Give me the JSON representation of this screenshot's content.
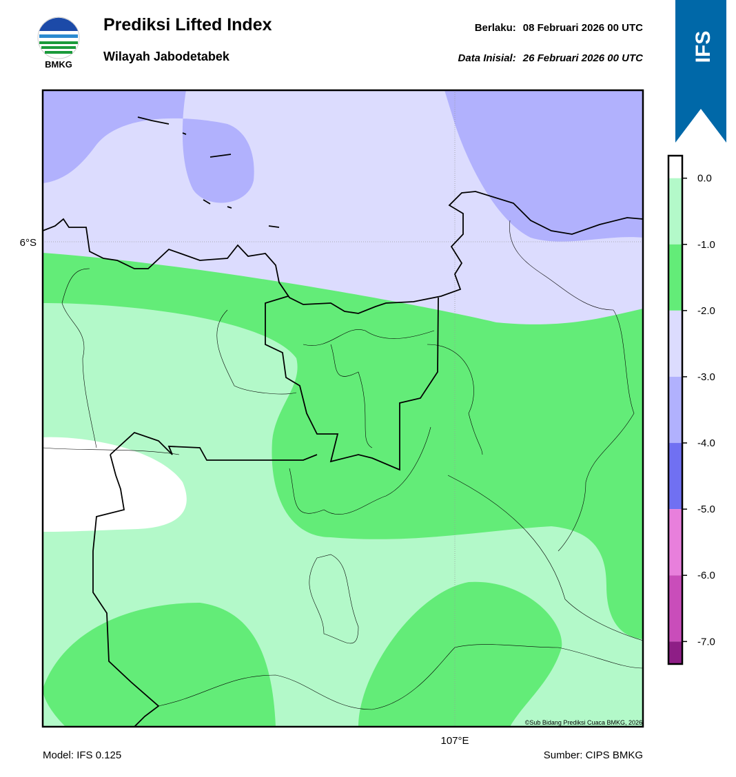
{
  "header": {
    "title": "Prediksi Lifted Index",
    "subtitle": "Wilayah Jabodetabek",
    "valid_label": "Berlaku:",
    "valid_date": "08 Februari 2026 00 UTC",
    "init_label": "Data Inisial:",
    "init_date": "26 Februari 2026 00 UTC",
    "logo_text": "BMKG",
    "badge": "IFS"
  },
  "map": {
    "lat_label": "6°S",
    "lon_label": "107°E",
    "credit": "©Sub Bidang Prediksi Cuaca BMKG, 2026"
  },
  "colorbar": {
    "range": [
      -7.34,
      0.34
    ],
    "ticks": [
      {
        "value": 0,
        "label": "0.0"
      },
      {
        "value": -1,
        "label": "-1.0"
      },
      {
        "value": -2,
        "label": "-2.0"
      },
      {
        "value": -3,
        "label": "-3.0"
      },
      {
        "value": -4,
        "label": "-4.0"
      },
      {
        "value": -5,
        "label": "-5.0"
      },
      {
        "value": -6,
        "label": "-6.0"
      },
      {
        "value": -7,
        "label": "-7.0"
      }
    ],
    "bands": [
      {
        "from": 0,
        "to": 0.34,
        "color": "#ffffff"
      },
      {
        "from": -1,
        "to": 0,
        "color": "#b3f9c9"
      },
      {
        "from": -2,
        "to": -1,
        "color": "#63ec78"
      },
      {
        "from": -3,
        "to": -2,
        "color": "#dcdcfe"
      },
      {
        "from": -4,
        "to": -3,
        "color": "#b1b1fd"
      },
      {
        "from": -5,
        "to": -4,
        "color": "#7070f2"
      },
      {
        "from": -6,
        "to": -5,
        "color": "#e87fdc"
      },
      {
        "from": -7,
        "to": -6,
        "color": "#c94dba"
      },
      {
        "from": -7.34,
        "to": -7,
        "color": "#8e1e86"
      }
    ]
  },
  "footer": {
    "model": "Model: IFS 0.125",
    "source": "Sumber: CIPS BMKG"
  }
}
